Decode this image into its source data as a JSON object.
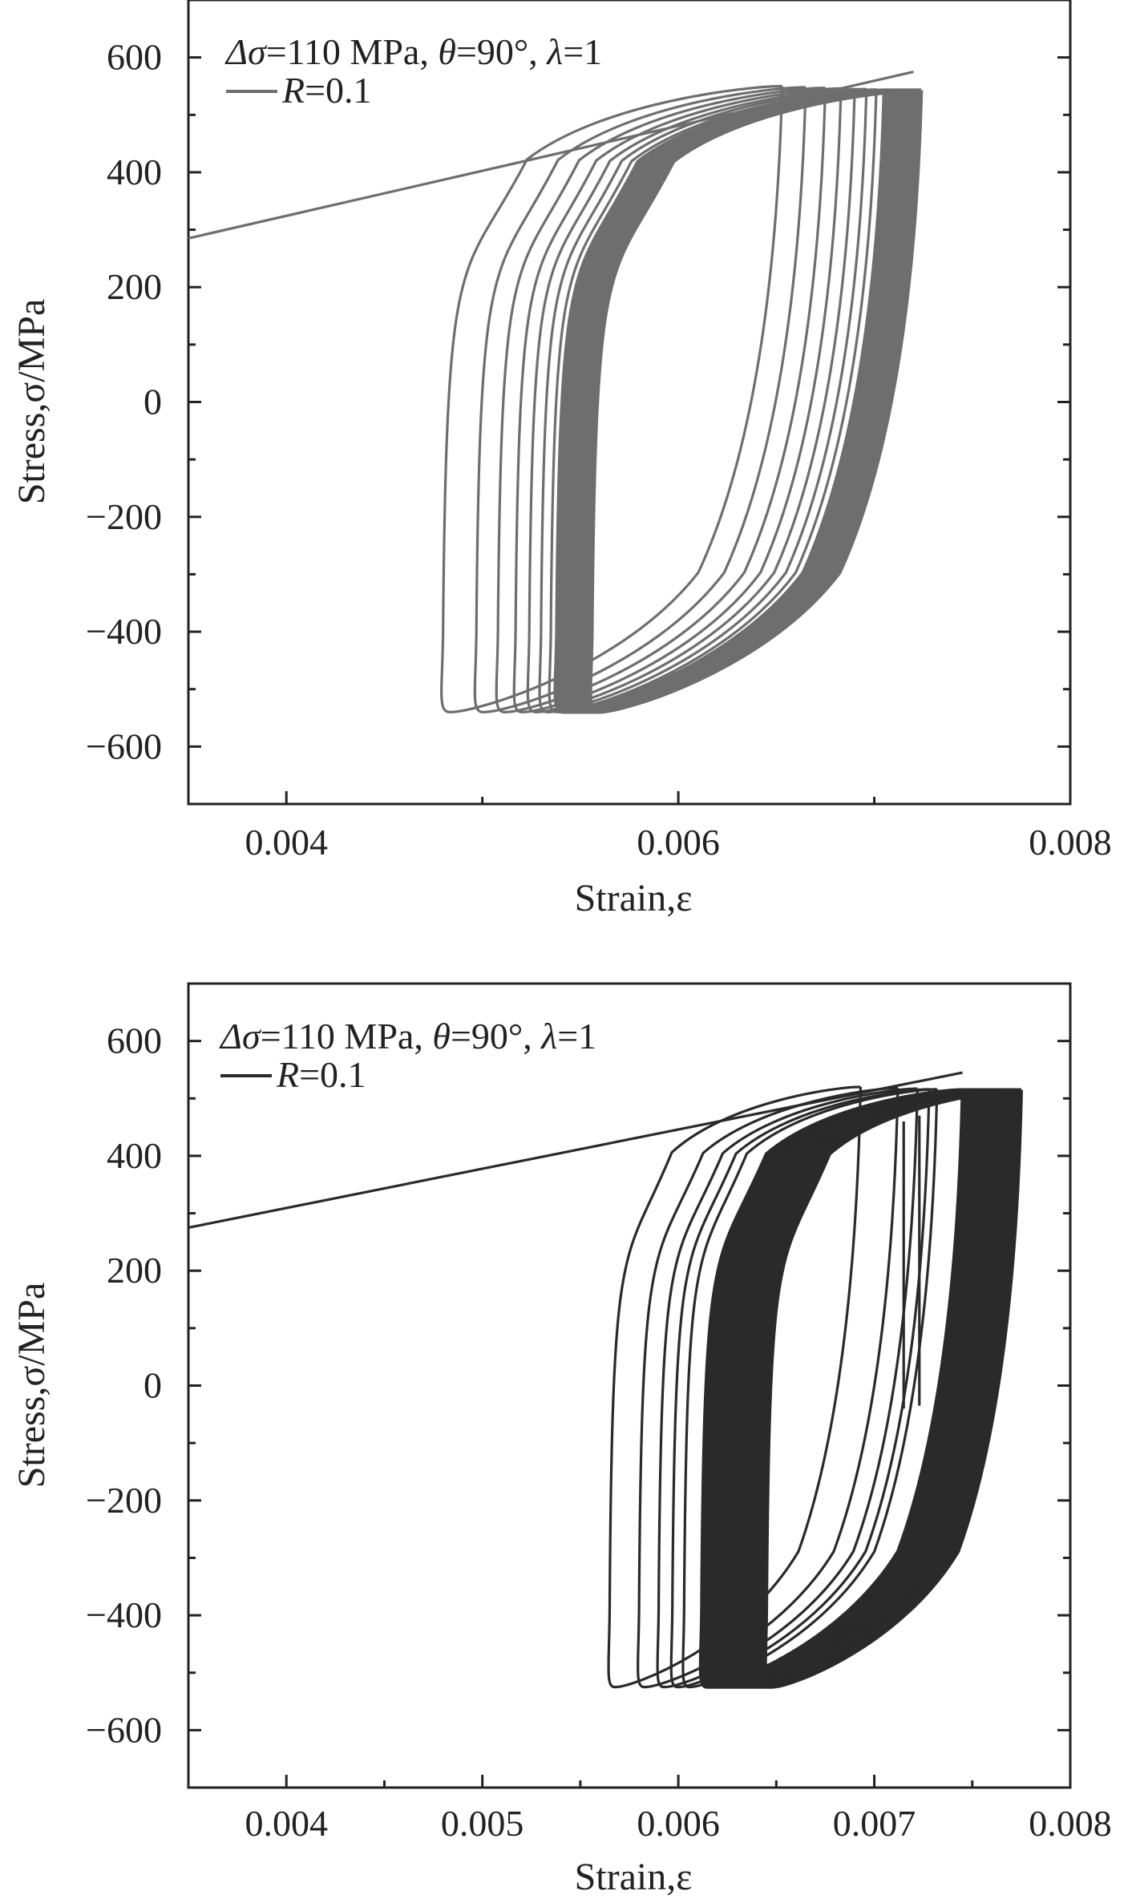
{
  "chart_data": [
    {
      "type": "line",
      "panel": "top",
      "color": "#6e6e6e",
      "xlabel": "Strain,ε",
      "ylabel": "Stress,σ/MPa",
      "xlim": [
        0.0035,
        0.008
      ],
      "ylim": [
        -700,
        700
      ],
      "x_ticks": [
        0.004,
        0.006,
        0.008
      ],
      "x_tick_labels": [
        "0.004",
        "0.006",
        "0.008"
      ],
      "y_ticks": [
        600,
        400,
        200,
        0,
        -200,
        -400,
        -600
      ],
      "y_tick_labels": [
        "600",
        "400",
        "200",
        "0",
        "−200",
        "−400",
        "−600"
      ],
      "annotation": {
        "delta_sigma": "Δσ",
        "loading": "=110 MPa, ",
        "theta": "θ",
        "theta_value": "=90°, ",
        "lambda": "λ",
        "lambda_value": "=1"
      },
      "legend": {
        "symbol": "R",
        "value": "=0.1"
      },
      "initial_loading": {
        "x": [
          0.0035,
          0.0072
        ],
        "y": [
          285,
          575
        ]
      },
      "loops": [
        {
          "right_x": 0.00653,
          "left_x": 0.0048,
          "peak": 550,
          "valley": -540
        },
        {
          "right_x": 0.00665,
          "left_x": 0.00497,
          "peak": 548,
          "valley": -540
        },
        {
          "right_x": 0.00675,
          "left_x": 0.00508,
          "peak": 547,
          "valley": -540
        },
        {
          "right_x": 0.00683,
          "left_x": 0.00517,
          "peak": 546,
          "valley": -540
        },
        {
          "right_x": 0.0069,
          "left_x": 0.00524,
          "peak": 545,
          "valley": -540
        },
        {
          "right_x": 0.00696,
          "left_x": 0.0053,
          "peak": 545,
          "valley": -540
        },
        {
          "right_x": 0.00701,
          "left_x": 0.00535,
          "peak": 544,
          "valley": -540
        }
      ],
      "thick_band": {
        "right_x": [
          0.00705,
          0.00724
        ],
        "left_x": [
          0.00538,
          0.00556
        ],
        "peak": 543,
        "valley": -540
      }
    },
    {
      "type": "line",
      "panel": "bottom",
      "color": "#2a2a2a",
      "xlabel": "Strain,ε",
      "ylabel": "Stress,σ/MPa",
      "xlim": [
        0.0035,
        0.008
      ],
      "ylim": [
        -700,
        700
      ],
      "x_ticks": [
        0.004,
        0.005,
        0.006,
        0.007,
        0.008
      ],
      "x_tick_labels": [
        "0.004",
        "0.005",
        "0.006",
        "0.007",
        "0.008"
      ],
      "y_ticks": [
        600,
        400,
        200,
        0,
        -200,
        -400,
        -600
      ],
      "y_tick_labels": [
        "600",
        "400",
        "200",
        "0",
        "−200",
        "−400",
        "−600"
      ],
      "annotation": {
        "delta_sigma": "Δσ",
        "loading": "=110 MPa, ",
        "theta": "θ",
        "theta_value": "=90°, ",
        "lambda": "λ",
        "lambda_value": "=1"
      },
      "legend": {
        "symbol": "R",
        "value": "=0.1"
      },
      "initial_loading": {
        "x": [
          0.0035,
          0.00745
        ],
        "y": [
          275,
          545
        ]
      },
      "loops": [
        {
          "right_x": 0.00693,
          "left_x": 0.00565,
          "peak": 520,
          "valley": -525
        },
        {
          "right_x": 0.00712,
          "left_x": 0.0058,
          "peak": 518,
          "valley": -525
        },
        {
          "right_x": 0.00722,
          "left_x": 0.0059,
          "peak": 517,
          "valley": -525
        },
        {
          "right_x": 0.00728,
          "left_x": 0.00597,
          "peak": 516,
          "valley": -525
        },
        {
          "right_x": 0.00732,
          "left_x": 0.00603,
          "peak": 516,
          "valley": -525
        }
      ],
      "partial_lines": [
        {
          "x": 0.00715,
          "y": [
            -40,
            460
          ]
        },
        {
          "x": 0.00723,
          "y": [
            -35,
            470
          ]
        }
      ],
      "thick_band": {
        "right_x": [
          0.00745,
          0.00775
        ],
        "left_x": [
          0.00612,
          0.00645
        ],
        "peak": 515,
        "valley": -525
      }
    }
  ]
}
